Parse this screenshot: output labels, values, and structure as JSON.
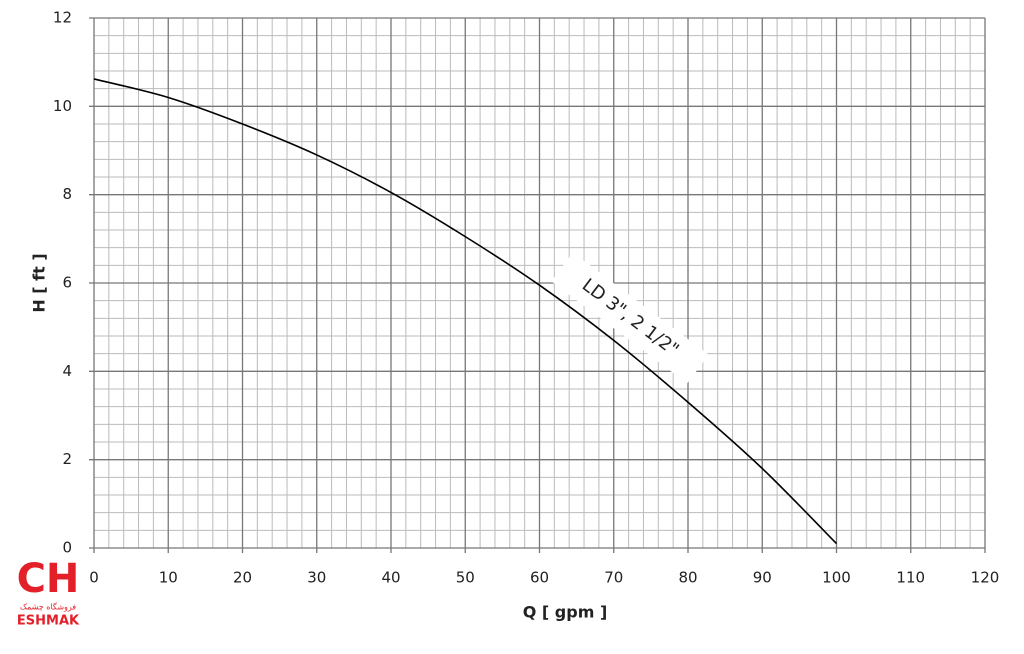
{
  "chart_data": {
    "type": "line",
    "x_label": "Q [ gpm ]",
    "y_label": "H [ ft ]",
    "x": [
      0,
      10,
      20,
      30,
      40,
      50,
      60,
      70,
      80,
      90,
      100
    ],
    "series": [
      {
        "name": "LD 3\", 2 1/2\"",
        "color": "#000000",
        "values": [
          10.62,
          10.2,
          9.6,
          8.9,
          8.05,
          7.05,
          5.95,
          4.7,
          3.3,
          1.8,
          0.1
        ]
      }
    ],
    "xlim": [
      0,
      120
    ],
    "xticks": [
      0,
      10,
      20,
      30,
      40,
      50,
      60,
      70,
      80,
      90,
      100,
      110,
      120
    ],
    "ylim": [
      0,
      12
    ],
    "yticks": [
      0,
      2,
      4,
      6,
      8,
      10,
      12
    ],
    "x_minor_ticks": [
      2,
      4,
      6,
      8,
      12,
      14,
      16,
      18,
      22,
      24,
      26,
      28,
      32,
      34,
      36,
      38,
      42,
      44,
      46,
      48,
      52,
      54,
      56,
      58,
      62,
      64,
      66,
      68,
      72,
      74,
      76,
      78,
      82,
      84,
      86,
      88,
      92,
      94,
      96,
      98,
      102,
      104,
      106,
      108,
      112,
      114,
      116,
      118
    ],
    "y_minor_ticks": [
      0.4,
      0.8,
      1.2,
      1.6,
      2.4,
      2.8,
      3.2,
      3.6,
      4.4,
      4.8,
      5.2,
      5.6,
      6.4,
      6.8,
      7.2,
      7.6,
      8.4,
      8.8,
      9.2,
      9.6,
      10.4,
      10.8,
      11.2,
      11.6
    ],
    "grid": true,
    "logo": {
      "mark": "CH",
      "tagline": "فروشگاه چشمک",
      "brand": "ESHMAK"
    }
  }
}
